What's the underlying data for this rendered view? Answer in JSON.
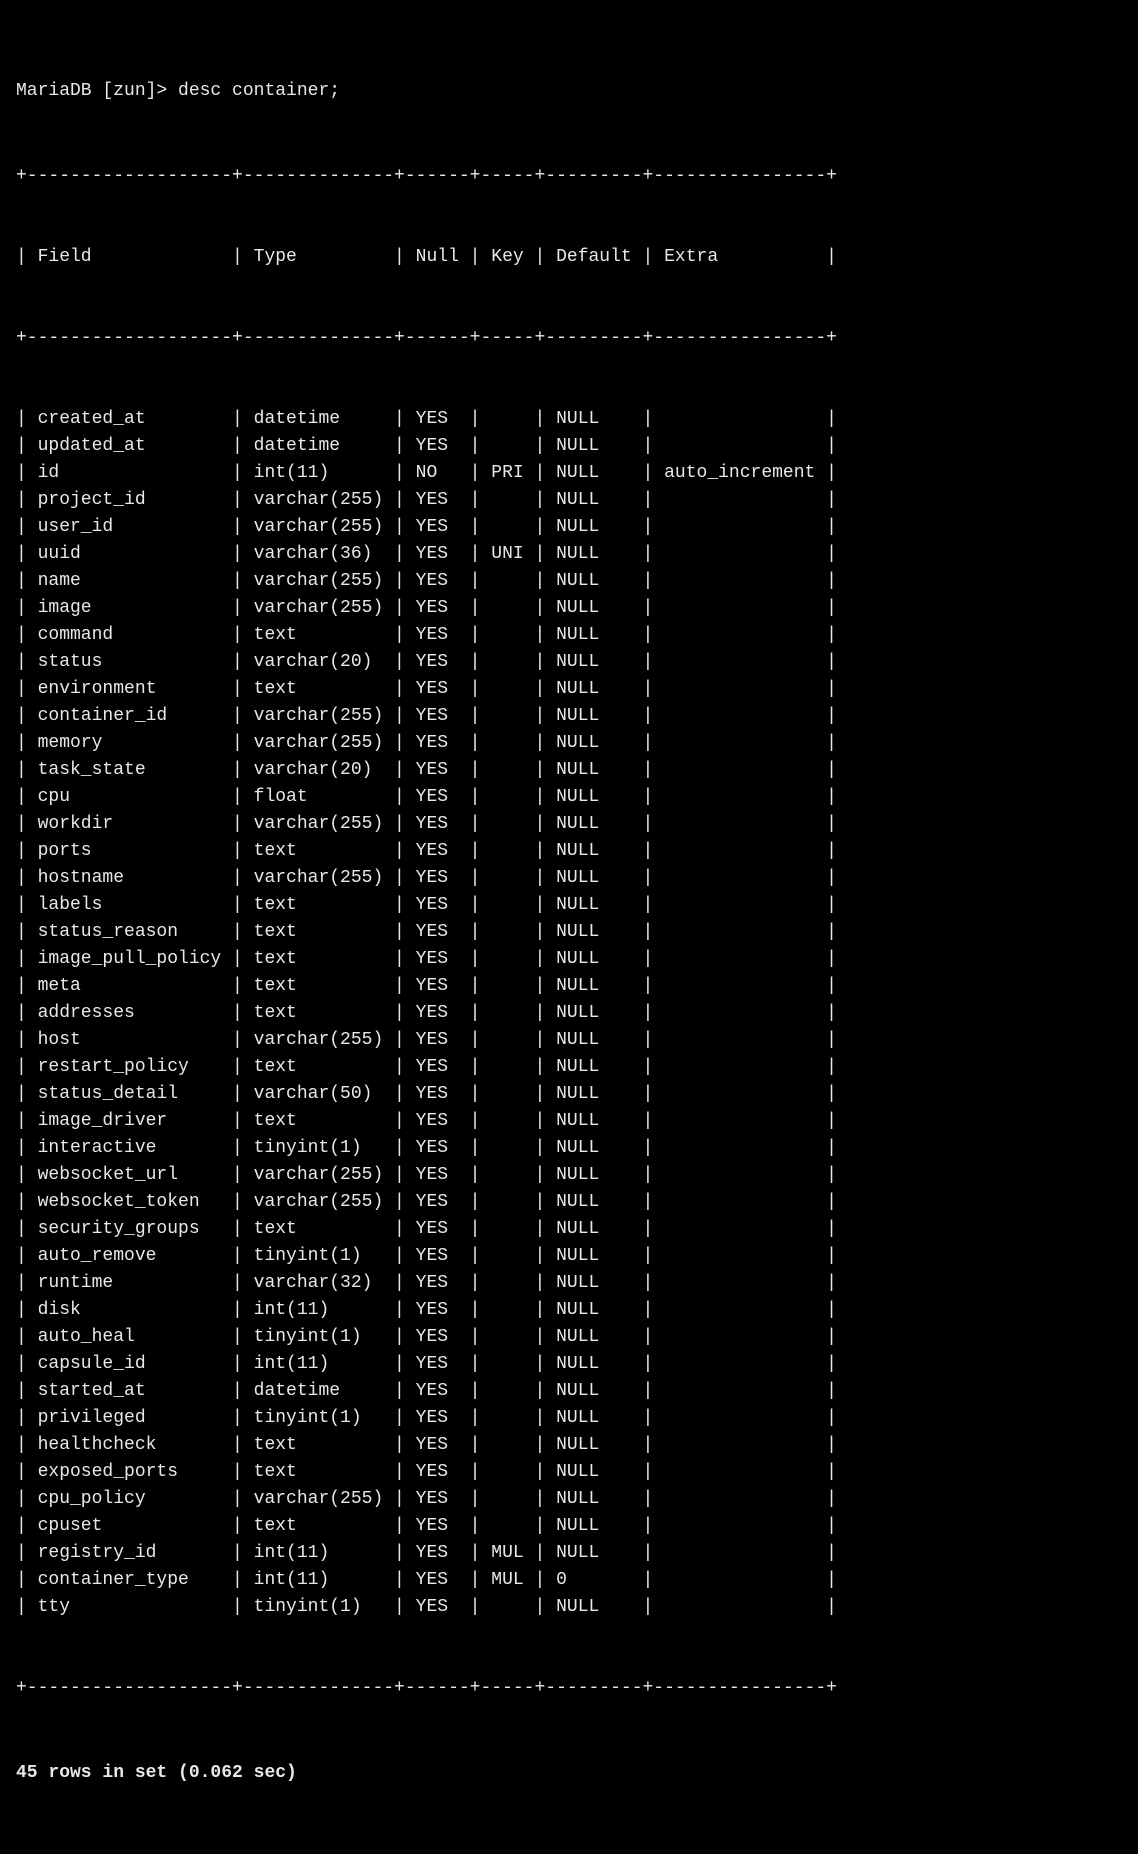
{
  "prompt": "MariaDB [zun]> desc container;",
  "colors": {
    "background": "#000000",
    "text": "#e8e8e8"
  },
  "table": {
    "columns": [
      {
        "name": "Field",
        "width": 19
      },
      {
        "name": "Type",
        "width": 14
      },
      {
        "name": "Null",
        "width": 6
      },
      {
        "name": "Key",
        "width": 5
      },
      {
        "name": "Default",
        "width": 9
      },
      {
        "name": "Extra",
        "width": 16
      }
    ],
    "rows": [
      [
        "created_at",
        "datetime",
        "YES",
        "",
        "NULL",
        ""
      ],
      [
        "updated_at",
        "datetime",
        "YES",
        "",
        "NULL",
        ""
      ],
      [
        "id",
        "int(11)",
        "NO",
        "PRI",
        "NULL",
        "auto_increment"
      ],
      [
        "project_id",
        "varchar(255)",
        "YES",
        "",
        "NULL",
        ""
      ],
      [
        "user_id",
        "varchar(255)",
        "YES",
        "",
        "NULL",
        ""
      ],
      [
        "uuid",
        "varchar(36)",
        "YES",
        "UNI",
        "NULL",
        ""
      ],
      [
        "name",
        "varchar(255)",
        "YES",
        "",
        "NULL",
        ""
      ],
      [
        "image",
        "varchar(255)",
        "YES",
        "",
        "NULL",
        ""
      ],
      [
        "command",
        "text",
        "YES",
        "",
        "NULL",
        ""
      ],
      [
        "status",
        "varchar(20)",
        "YES",
        "",
        "NULL",
        ""
      ],
      [
        "environment",
        "text",
        "YES",
        "",
        "NULL",
        ""
      ],
      [
        "container_id",
        "varchar(255)",
        "YES",
        "",
        "NULL",
        ""
      ],
      [
        "memory",
        "varchar(255)",
        "YES",
        "",
        "NULL",
        ""
      ],
      [
        "task_state",
        "varchar(20)",
        "YES",
        "",
        "NULL",
        ""
      ],
      [
        "cpu",
        "float",
        "YES",
        "",
        "NULL",
        ""
      ],
      [
        "workdir",
        "varchar(255)",
        "YES",
        "",
        "NULL",
        ""
      ],
      [
        "ports",
        "text",
        "YES",
        "",
        "NULL",
        ""
      ],
      [
        "hostname",
        "varchar(255)",
        "YES",
        "",
        "NULL",
        ""
      ],
      [
        "labels",
        "text",
        "YES",
        "",
        "NULL",
        ""
      ],
      [
        "status_reason",
        "text",
        "YES",
        "",
        "NULL",
        ""
      ],
      [
        "image_pull_policy",
        "text",
        "YES",
        "",
        "NULL",
        ""
      ],
      [
        "meta",
        "text",
        "YES",
        "",
        "NULL",
        ""
      ],
      [
        "addresses",
        "text",
        "YES",
        "",
        "NULL",
        ""
      ],
      [
        "host",
        "varchar(255)",
        "YES",
        "",
        "NULL",
        ""
      ],
      [
        "restart_policy",
        "text",
        "YES",
        "",
        "NULL",
        ""
      ],
      [
        "status_detail",
        "varchar(50)",
        "YES",
        "",
        "NULL",
        ""
      ],
      [
        "image_driver",
        "text",
        "YES",
        "",
        "NULL",
        ""
      ],
      [
        "interactive",
        "tinyint(1)",
        "YES",
        "",
        "NULL",
        ""
      ],
      [
        "websocket_url",
        "varchar(255)",
        "YES",
        "",
        "NULL",
        ""
      ],
      [
        "websocket_token",
        "varchar(255)",
        "YES",
        "",
        "NULL",
        ""
      ],
      [
        "security_groups",
        "text",
        "YES",
        "",
        "NULL",
        ""
      ],
      [
        "auto_remove",
        "tinyint(1)",
        "YES",
        "",
        "NULL",
        ""
      ],
      [
        "runtime",
        "varchar(32)",
        "YES",
        "",
        "NULL",
        ""
      ],
      [
        "disk",
        "int(11)",
        "YES",
        "",
        "NULL",
        ""
      ],
      [
        "auto_heal",
        "tinyint(1)",
        "YES",
        "",
        "NULL",
        ""
      ],
      [
        "capsule_id",
        "int(11)",
        "YES",
        "",
        "NULL",
        ""
      ],
      [
        "started_at",
        "datetime",
        "YES",
        "",
        "NULL",
        ""
      ],
      [
        "privileged",
        "tinyint(1)",
        "YES",
        "",
        "NULL",
        ""
      ],
      [
        "healthcheck",
        "text",
        "YES",
        "",
        "NULL",
        ""
      ],
      [
        "exposed_ports",
        "text",
        "YES",
        "",
        "NULL",
        ""
      ],
      [
        "cpu_policy",
        "varchar(255)",
        "YES",
        "",
        "NULL",
        ""
      ],
      [
        "cpuset",
        "text",
        "YES",
        "",
        "NULL",
        ""
      ],
      [
        "registry_id",
        "int(11)",
        "YES",
        "MUL",
        "NULL",
        ""
      ],
      [
        "container_type",
        "int(11)",
        "YES",
        "MUL",
        "0",
        ""
      ],
      [
        "tty",
        "tinyint(1)",
        "YES",
        "",
        "NULL",
        ""
      ]
    ]
  },
  "footer": "45 rows in set (0.062 sec)"
}
